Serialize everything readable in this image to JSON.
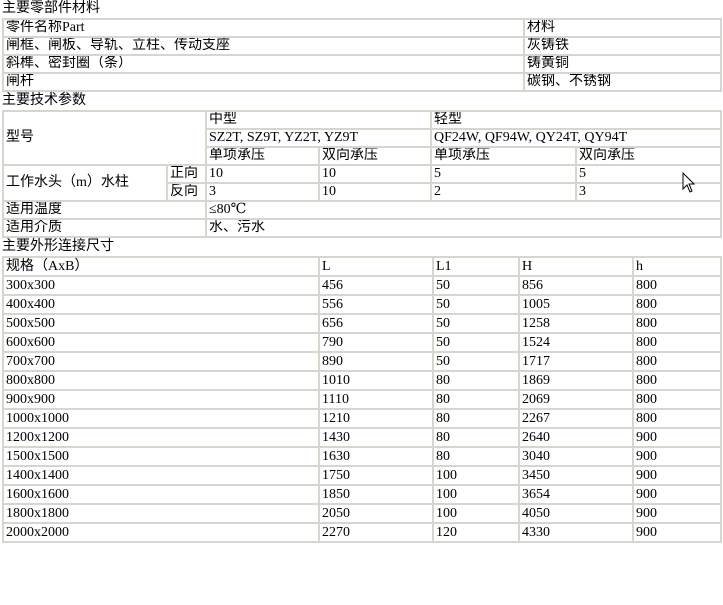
{
  "parts": {
    "heading": "主要零部件材料",
    "header": [
      "零件名称Part",
      "材料"
    ],
    "rows": [
      [
        "闸框、闸板、导轨、立柱、传动支座",
        "灰铸铁"
      ],
      [
        "斜榫、密封圈（条）",
        "铸黄铜"
      ],
      [
        "闸杆",
        "碳钢、不锈钢"
      ]
    ]
  },
  "specs": {
    "heading": "主要技术参数",
    "model_label": "型号",
    "medium_type": "中型",
    "light_type": "轻型",
    "medium_models": "SZ2T, SZ9T, YZ2T, YZ9T",
    "light_models": "QF24W, QF94W, QY24T, QY94T",
    "pressure_headers": [
      "单项承压",
      "双向承压",
      "单项承压",
      "双向承压"
    ],
    "water_head_label": "工作水头（m）水柱",
    "forward_label": "正向",
    "reverse_label": "反向",
    "forward_values": [
      "10",
      "10",
      "5",
      "5"
    ],
    "reverse_values": [
      "3",
      "10",
      "2",
      "3"
    ],
    "temp_label": "适用温度",
    "temp_value": "≤80℃",
    "medium_label": "适用介质",
    "medium_value": "水、污水"
  },
  "dimensions": {
    "heading": "主要外形连接尺寸",
    "columns": [
      "规格（AxB）",
      "L",
      "L1",
      "H",
      "h"
    ],
    "rows": [
      [
        "300x300",
        "456",
        "50",
        "856",
        "800"
      ],
      [
        "400x400",
        "556",
        "50",
        "1005",
        "800"
      ],
      [
        "500x500",
        "656",
        "50",
        "1258",
        "800"
      ],
      [
        "600x600",
        "790",
        "50",
        "1524",
        "800"
      ],
      [
        "700x700",
        "890",
        "50",
        "1717",
        "800"
      ],
      [
        "800x800",
        "1010",
        "80",
        "1869",
        "800"
      ],
      [
        "900x900",
        "1110",
        "80",
        "2069",
        "800"
      ],
      [
        "1000x1000",
        "1210",
        "80",
        "2267",
        "800"
      ],
      [
        "1200x1200",
        "1430",
        "80",
        "2640",
        "900"
      ],
      [
        "1500x1500",
        "1630",
        "80",
        "3040",
        "900"
      ],
      [
        "1400x1400",
        "1750",
        "100",
        "3450",
        "900"
      ],
      [
        "1600x1600",
        "1850",
        "100",
        "3654",
        "900"
      ],
      [
        "1800x1800",
        "2050",
        "100",
        "4050",
        "900"
      ],
      [
        "2000x2000",
        "2270",
        "120",
        "4330",
        "900"
      ]
    ]
  }
}
